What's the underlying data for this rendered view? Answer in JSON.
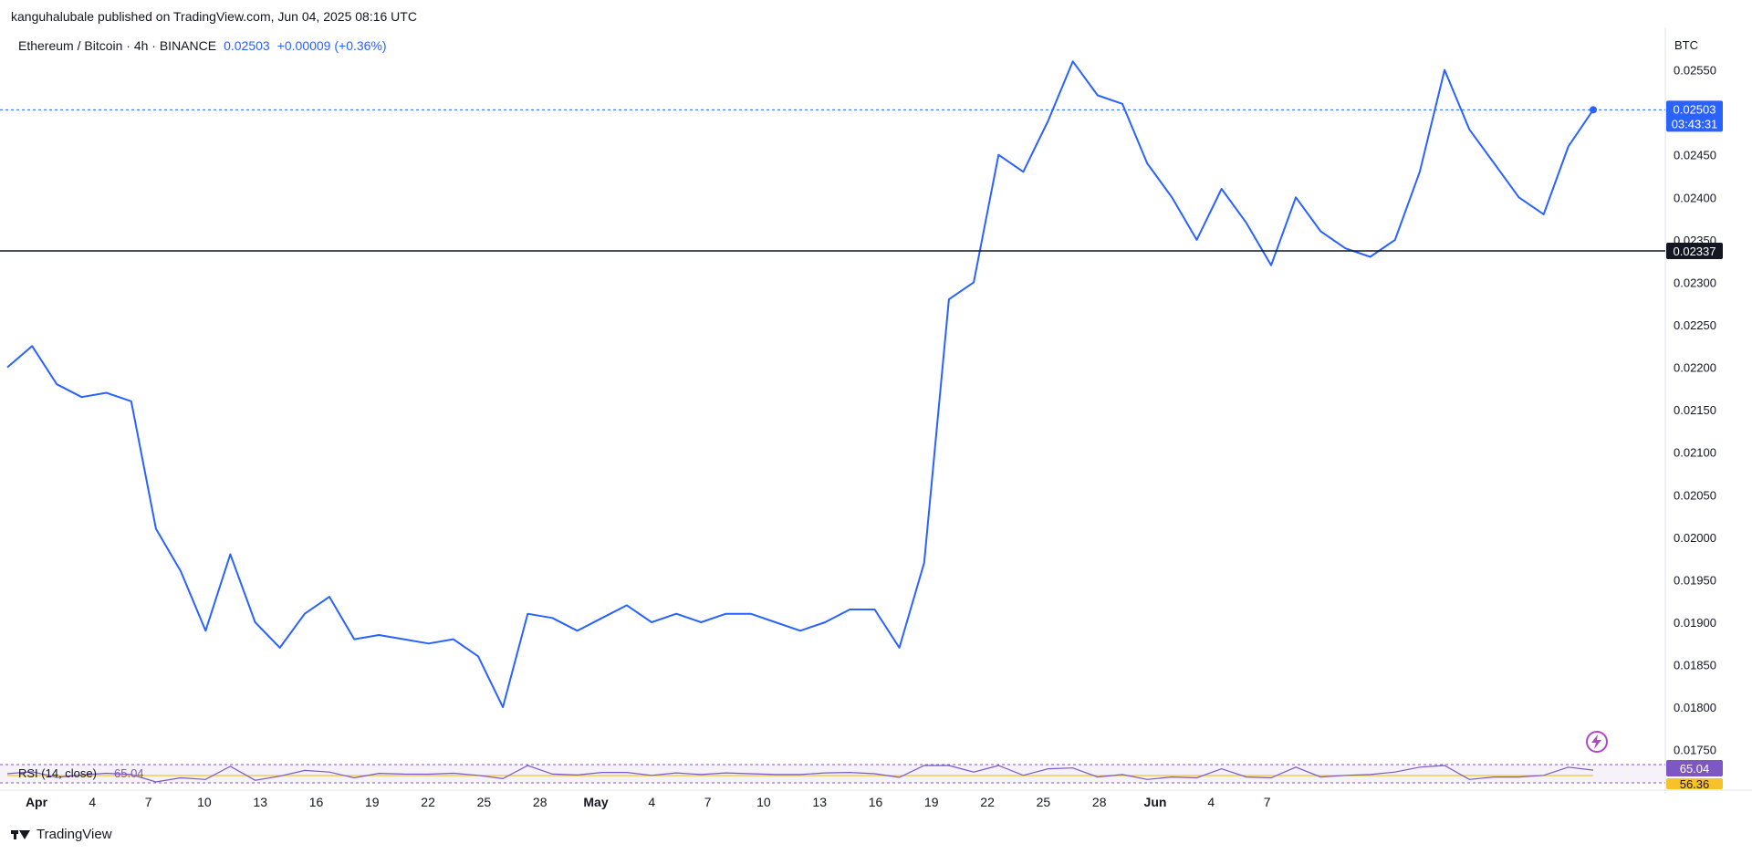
{
  "header": {
    "publisher": "kanguhalubale published on TradingView.com, Jun 04, 2025 08:16 UTC"
  },
  "legend": {
    "symbol": "Ethereum / Bitcoin · 4h · BINANCE",
    "price": "0.02503",
    "change": "+0.00009 (+0.36%)"
  },
  "currency": "BTC",
  "price_labels": {
    "last_price": "0.02503",
    "countdown": "03:43:31",
    "hline_price": "0.02337",
    "rsi_value": "65.04",
    "rsi_ma_value": "56.36"
  },
  "rsi": {
    "label": "RSI (14, close)",
    "value": "65.04",
    "ma_value": "56.36"
  },
  "footer": {
    "brand": "TradingView"
  },
  "colors": {
    "line": "#2962ff",
    "hline": "#131722",
    "rsi": "#7e57c2",
    "rsi_ma": "#f7c12a",
    "bolt": "#b145c9"
  },
  "chart_data": {
    "type": "line",
    "title": "Ethereum / Bitcoin · 4h · BINANCE",
    "ylabel": "BTC",
    "ylim": [
      0.01725,
      0.026
    ],
    "y_ticks": [
      "0.02550",
      "0.02450",
      "0.02400",
      "0.02350",
      "0.02300",
      "0.02250",
      "0.02200",
      "0.02150",
      "0.02100",
      "0.02050",
      "0.02000",
      "0.01950",
      "0.01900",
      "0.01850",
      "0.01800",
      "0.01750"
    ],
    "x_ticks": [
      "Apr",
      "4",
      "7",
      "10",
      "13",
      "16",
      "19",
      "22",
      "25",
      "28",
      "May",
      "4",
      "7",
      "10",
      "13",
      "16",
      "19",
      "22",
      "25",
      "28",
      "Jun",
      "4",
      "7"
    ],
    "horizontal_line": 0.02337,
    "series": [
      {
        "x": [
          "Apr 01",
          "Apr 02",
          "Apr 03",
          "Apr 04",
          "Apr 05",
          "Apr 06",
          "Apr 07",
          "Apr 08",
          "Apr 09",
          "Apr 10",
          "Apr 11",
          "Apr 12",
          "Apr 13",
          "Apr 14",
          "Apr 15",
          "Apr 16",
          "Apr 17",
          "Apr 18",
          "Apr 19",
          "Apr 20",
          "Apr 21",
          "Apr 22",
          "Apr 23",
          "Apr 24",
          "Apr 25",
          "Apr 26",
          "Apr 27",
          "Apr 28",
          "Apr 29",
          "Apr 30",
          "May 01",
          "May 02",
          "May 03",
          "May 04",
          "May 05",
          "May 06",
          "May 07",
          "May 08",
          "May 09",
          "May 10",
          "May 11",
          "May 12",
          "May 13",
          "May 14",
          "May 15",
          "May 16",
          "May 17",
          "May 18",
          "May 19",
          "May 20",
          "May 21",
          "May 22",
          "May 23",
          "May 24",
          "May 25",
          "May 26",
          "May 27",
          "May 28",
          "May 29",
          "May 30",
          "May 31",
          "Jun 01",
          "Jun 02",
          "Jun 03",
          "Jun 04"
        ],
        "values": [
          0.022,
          0.02225,
          0.0218,
          0.02165,
          0.0217,
          0.0216,
          0.0201,
          0.0196,
          0.0189,
          0.0198,
          0.019,
          0.0187,
          0.0191,
          0.0193,
          0.0188,
          0.01885,
          0.0188,
          0.01875,
          0.0188,
          0.0186,
          0.018,
          0.0191,
          0.01905,
          0.0189,
          0.01905,
          0.0192,
          0.019,
          0.0191,
          0.019,
          0.0191,
          0.0191,
          0.019,
          0.0189,
          0.019,
          0.01915,
          0.01915,
          0.0187,
          0.0197,
          0.0228,
          0.023,
          0.0245,
          0.0243,
          0.0249,
          0.0256,
          0.0252,
          0.0251,
          0.0244,
          0.024,
          0.0235,
          0.0241,
          0.0237,
          0.0232,
          0.024,
          0.0236,
          0.0234,
          0.0233,
          0.0235,
          0.0243,
          0.0255,
          0.0248,
          0.0244,
          0.024,
          0.0238,
          0.0246,
          0.02503
        ]
      }
    ],
    "rsi": {
      "label": "RSI (14, close)",
      "last": 65.04,
      "ma_last": 56.36
    }
  }
}
